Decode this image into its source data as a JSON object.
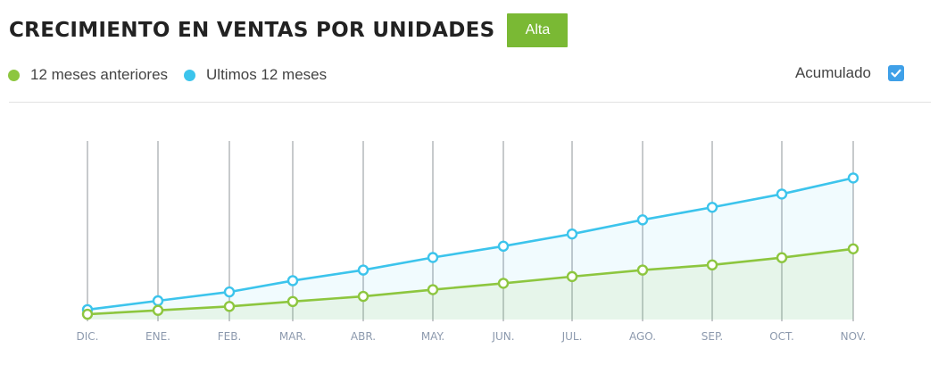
{
  "header": {
    "title": "CRECIMIENTO EN VENTAS POR UNIDADES",
    "badge": "Alta"
  },
  "legend": {
    "previous": "12 meses anteriores",
    "current": "Ultimos 12 meses"
  },
  "accumulate": {
    "label": "Acumulado",
    "checked": true,
    "check_icon": "check-icon"
  },
  "colors": {
    "previous": "#8dc63f",
    "current": "#3cc4ec",
    "badge": "#7ab934",
    "checkbox": "#3fa0e8"
  },
  "chart_data": {
    "type": "area",
    "title": "CRECIMIENTO EN VENTAS POR UNIDADES",
    "xlabel": "",
    "ylabel": "",
    "categories": [
      "DIC.",
      "ENE.",
      "FEB.",
      "MAR.",
      "ABR.",
      "MAY.",
      "JUN.",
      "JUL.",
      "AGO.",
      "SEP.",
      "OCT.",
      "NOV."
    ],
    "series": [
      {
        "name": "12 meses anteriores",
        "color": "#8dc63f",
        "values": [
          3,
          5.2,
          7.4,
          10.2,
          13.1,
          16.9,
          20.5,
          24.3,
          28,
          30.9,
          35,
          40
        ]
      },
      {
        "name": "Ultimos 12 meses",
        "color": "#3cc4ec",
        "values": [
          5.6,
          10.6,
          15.6,
          22,
          28,
          35.1,
          41.5,
          48.4,
          56.4,
          63.5,
          71,
          80.1
        ]
      }
    ],
    "ylim": [
      0,
      100
    ],
    "grid": true,
    "legend_position": "top-left"
  }
}
